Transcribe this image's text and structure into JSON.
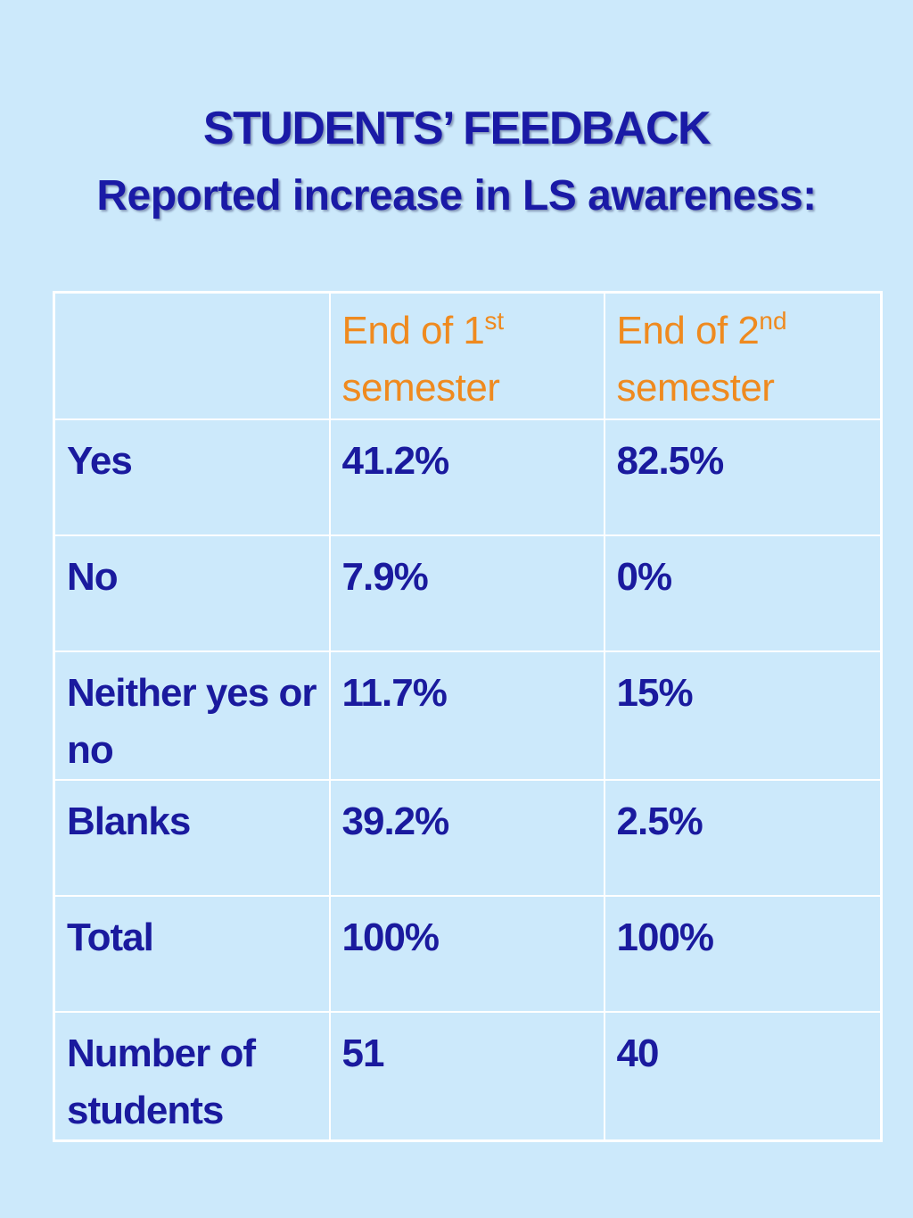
{
  "title": "STUDENTS’ FEEDBACK",
  "subtitle": "Reported increase in LS awareness:",
  "table": {
    "header": {
      "corner": "",
      "col1": {
        "prefix": "End of 1",
        "ordinal": "st",
        "suffix": "semester"
      },
      "col2": {
        "prefix": "End of 2",
        "ordinal": "nd",
        "suffix": "semester"
      }
    },
    "rows": [
      {
        "label": "Yes",
        "sem1": "41.2%",
        "sem2": "82.5%"
      },
      {
        "label": "No",
        "sem1": "7.9%",
        "sem2": "0%"
      },
      {
        "label": "Neither yes or no",
        "sem1": "11.7%",
        "sem2": "15%"
      },
      {
        "label": "Blanks",
        "sem1": "39.2%",
        "sem2": "2.5%"
      },
      {
        "label": "Total",
        "sem1": "100%",
        "sem2": "100%"
      },
      {
        "label": "Number of students",
        "sem1": "51",
        "sem2": "40"
      }
    ]
  },
  "colors": {
    "background": "#cce9fb",
    "title": "#1a1aa6",
    "header_text": "#ef8a1f",
    "body_text": "#1a1a9e",
    "grid": "#ffffff"
  }
}
